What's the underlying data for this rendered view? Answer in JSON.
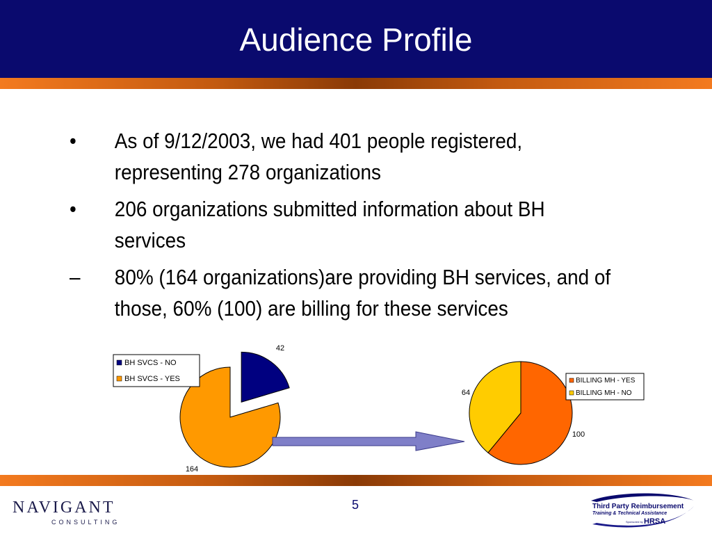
{
  "slide": {
    "title": "Audience Profile",
    "bullets": [
      {
        "marker": "•",
        "text": "As of 9/12/2003, we had 401 people registered, representing 278 organizations"
      },
      {
        "marker": "•",
        "text": "206 organizations submitted information about BH services"
      },
      {
        "marker": "–",
        "text": "80% (164 organizations)are providing BH services, and of those, 60% (100) are billing for these services"
      }
    ],
    "page_number": "5"
  },
  "logos": {
    "navigant": {
      "name": "NAVIGANT",
      "sub": "CONSULTING"
    },
    "tpr": {
      "line1": "Third Party Reimbursement",
      "line2": "Training & Technical Assistance",
      "sponsor": "Sponsored by",
      "hrsa": "HRSA"
    }
  },
  "colors": {
    "navy": "#0a0a6e",
    "orange": "#f37a1f",
    "pie_orange": "#ff9900",
    "pie_navy": "#000080",
    "pie_red_orange": "#ff6600",
    "pie_yellow": "#ffcc00",
    "arrow": "#7f7fc8"
  },
  "chart_data": [
    {
      "type": "pie",
      "slices": [
        {
          "label": "BH SVCS - NO",
          "value": 42,
          "color": "#000080",
          "exploded": true
        },
        {
          "label": "BH SVCS - YES",
          "value": 164,
          "color": "#ff9900",
          "exploded": false
        }
      ],
      "data_labels": [
        "42",
        "164"
      ],
      "legend": {
        "placement": "top-left",
        "entries": [
          "BH SVCS - NO",
          "BH SVCS - YES"
        ]
      }
    },
    {
      "type": "pie",
      "slices": [
        {
          "label": "BILLING MH - YES",
          "value": 100,
          "color": "#ff6600"
        },
        {
          "label": "BILLING MH - NO",
          "value": 64,
          "color": "#ffcc00"
        }
      ],
      "data_labels": [
        "100",
        "64"
      ],
      "legend": {
        "placement": "right",
        "entries": [
          "BILLING MH - YES",
          "BILLING MH - NO"
        ]
      }
    }
  ]
}
